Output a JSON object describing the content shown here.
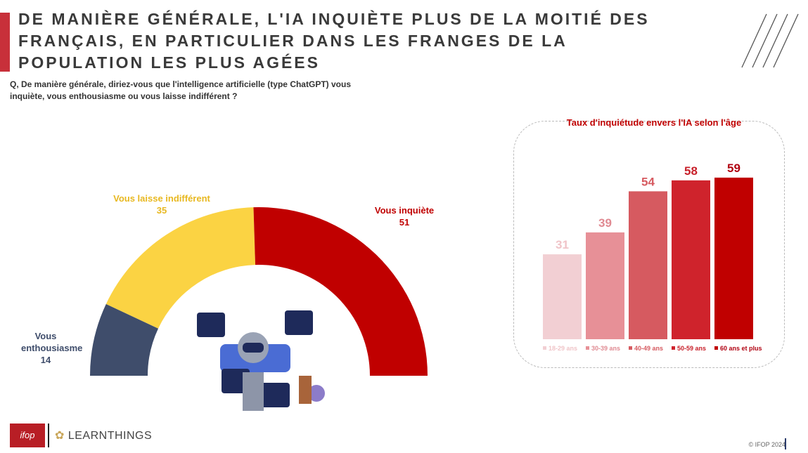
{
  "title": "DE MANIÈRE GÉNÉRALE, L'IA INQUIÈTE PLUS DE LA MOITIÉ DES FRANÇAIS, EN PARTICULIER DANS LES FRANGES DE LA POPULATION LES PLUS AGÉES",
  "question": "Q, De manière générale, diriez-vous que l'intelligence artificielle (type ChatGPT) vous inquiète, vous enthousiasme ou vous laisse indifférent ?",
  "footer": {
    "copyright": "© IFOP 2024",
    "logo1": "ifop",
    "logo2": "LEARNTHINGS"
  },
  "chart_data": [
    {
      "type": "pie",
      "subtype": "half-donut",
      "categories": [
        "Vous enthousiasme",
        "Vous laisse indifférent",
        "Vous inquiète"
      ],
      "values": [
        14,
        35,
        51
      ],
      "colors": [
        "#3f4d6b",
        "#fbd343",
        "#c00000"
      ],
      "label_colors": [
        "#3f4d6b",
        "#e8b820",
        "#c00000"
      ]
    },
    {
      "type": "bar",
      "title": "Taux d'inquiétude envers l'IA selon l'âge",
      "categories": [
        "18-29 ans",
        "30-39 ans",
        "40-49 ans",
        "50-59 ans",
        "60 ans et plus"
      ],
      "values": [
        31,
        39,
        54,
        58,
        59
      ],
      "colors": [
        "#f2cfd3",
        "#e79097",
        "#d65a60",
        "#cf232c",
        "#c00000"
      ],
      "label_colors": [
        "#f0c4c8",
        "#e08a92",
        "#d65a60",
        "#c8202a",
        "#b00010"
      ],
      "ylim": [
        0,
        60
      ]
    }
  ]
}
